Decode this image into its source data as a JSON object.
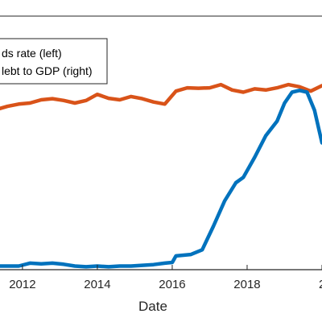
{
  "chart_data": {
    "type": "line",
    "xlabel": "Date",
    "x_ticks": [
      "2012",
      "2014",
      "2016",
      "2018",
      "2"
    ],
    "legend": {
      "placement": "top-left",
      "entries": [
        "ds rate (left)",
        "lebt to GDP (right)"
      ]
    },
    "grid": false,
    "series": [
      {
        "name": "debt to GDP (right)",
        "color": "#D95319",
        "x": [
          2011.3,
          2011.6,
          2011.9,
          2012.2,
          2012.5,
          2012.8,
          2013.1,
          2013.4,
          2013.7,
          2014.0,
          2014.3,
          2014.6,
          2014.9,
          2015.2,
          2015.5,
          2015.8,
          2016.1,
          2016.4,
          2016.7,
          2017.0,
          2017.3,
          2017.6,
          2017.9,
          2018.2,
          2018.5,
          2018.8,
          2019.1,
          2019.4,
          2019.7,
          2020.0
        ],
        "y": [
          0.2,
          0.35,
          0.45,
          0.5,
          0.65,
          0.7,
          0.62,
          0.5,
          0.62,
          0.9,
          0.72,
          0.65,
          0.8,
          0.7,
          0.55,
          0.45,
          1.05,
          1.2,
          1.18,
          1.2,
          1.35,
          1.1,
          1.0,
          1.15,
          1.1,
          1.2,
          1.35,
          1.25,
          1.05,
          1.3
        ]
      },
      {
        "name": "ds rate (left)",
        "color": "#0072BD",
        "x": [
          2011.3,
          2011.6,
          2011.9,
          2012.2,
          2012.5,
          2012.8,
          2013.1,
          2013.4,
          2013.7,
          2014.0,
          2014.3,
          2014.6,
          2014.9,
          2015.2,
          2015.5,
          2015.8,
          2016.0,
          2016.1,
          2016.3,
          2016.5,
          2016.8,
          2017.1,
          2017.4,
          2017.7,
          2017.9,
          2018.2,
          2018.5,
          2018.8,
          2019.0,
          2019.2,
          2019.4,
          2019.6,
          2019.8,
          2020.0
        ],
        "y": [
          0.1,
          0.1,
          0.1,
          0.18,
          0.16,
          0.18,
          0.15,
          0.1,
          0.08,
          0.1,
          0.08,
          0.1,
          0.1,
          0.12,
          0.14,
          0.18,
          0.2,
          0.38,
          0.4,
          0.42,
          0.55,
          1.2,
          1.9,
          2.4,
          2.55,
          3.1,
          3.7,
          4.1,
          4.6,
          4.9,
          4.95,
          4.9,
          4.4,
          3.5
        ]
      }
    ]
  }
}
